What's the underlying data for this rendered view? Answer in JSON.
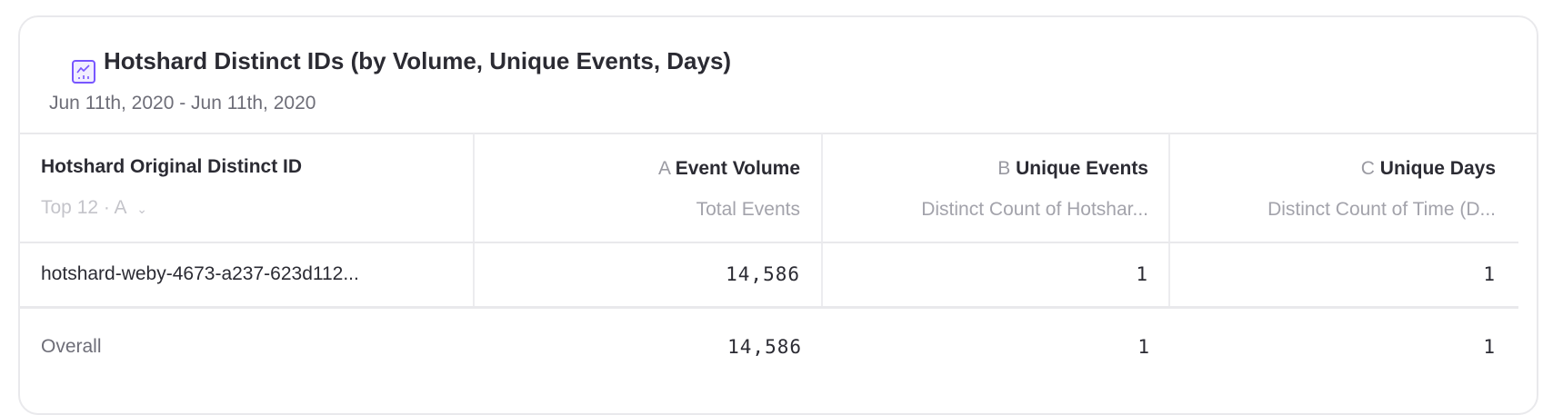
{
  "report": {
    "title": "Hotshard Distinct IDs (by Volume, Unique Events, Days)",
    "date_range": "Jun 11th, 2020 - Jun 11th, 2020",
    "icon": "line-chart-icon",
    "accent_color": "#7856ff"
  },
  "table": {
    "group_column": {
      "label": "Hotshard Original Distinct ID",
      "limit_control": "Top 12 · A"
    },
    "columns": [
      {
        "letter": "A",
        "label": "Event Volume",
        "measure": "Total Events"
      },
      {
        "letter": "B",
        "label": "Unique Events",
        "measure": "Distinct Count of Hotshar..."
      },
      {
        "letter": "C",
        "label": "Unique Days",
        "measure": "Distinct Count of Time (D..."
      }
    ],
    "rows": [
      {
        "id": "hotshard-weby-4673-a237-623d112...",
        "values": [
          "14,586",
          "1",
          "1"
        ]
      }
    ],
    "overall": {
      "label": "Overall",
      "values": [
        "14,586",
        "1",
        "1"
      ]
    }
  }
}
